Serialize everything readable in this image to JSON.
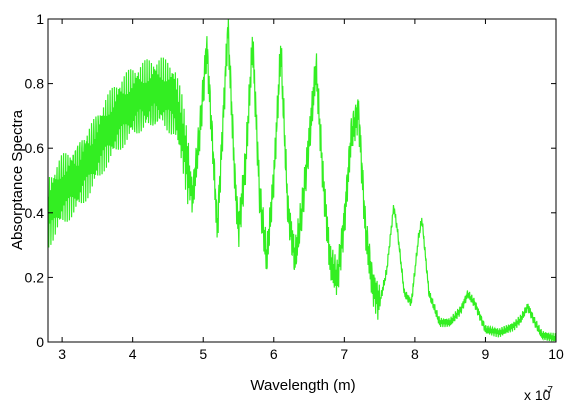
{
  "chart_data": {
    "type": "line",
    "title": "",
    "xlabel": "Wavelength (m)",
    "ylabel": "Absorptance Spectra",
    "x_scale_note": "x 10",
    "x_scale_exponent": "-7",
    "xlim": [
      2.8,
      10
    ],
    "ylim": [
      0,
      1
    ],
    "x_ticks": [
      3,
      4,
      5,
      6,
      7,
      8,
      9,
      10
    ],
    "y_ticks": [
      0,
      0.2,
      0.4,
      0.6,
      0.8,
      1
    ],
    "x_tick_labels": [
      "3",
      "4",
      "5",
      "6",
      "7",
      "8",
      "9",
      "10"
    ],
    "y_tick_labels": [
      "0",
      "0.2",
      "0.4",
      "0.6",
      "0.8",
      "1"
    ],
    "grid": false,
    "line_color": "#33ee22",
    "oscillation_note": "fine high-frequency ripple of roughly +/-0.1 on top of envelope",
    "series": [
      {
        "name": "",
        "x": [
          2.8,
          3.0,
          3.2,
          3.4,
          3.6,
          3.8,
          4.0,
          4.2,
          4.4,
          4.6,
          4.7,
          4.85,
          4.95,
          5.05,
          5.15,
          5.2,
          5.35,
          5.45,
          5.5,
          5.6,
          5.7,
          5.8,
          5.9,
          6.0,
          6.1,
          6.2,
          6.3,
          6.4,
          6.5,
          6.6,
          6.7,
          6.8,
          6.9,
          7.0,
          7.1,
          7.2,
          7.3,
          7.4,
          7.5,
          7.6,
          7.7,
          7.75,
          7.85,
          7.95,
          8.05,
          8.1,
          8.2,
          8.35,
          8.5,
          8.65,
          8.75,
          8.85,
          9.0,
          9.2,
          9.4,
          9.5,
          9.6,
          9.7,
          9.8,
          10.0
        ],
        "y": [
          0.4,
          0.48,
          0.52,
          0.58,
          0.65,
          0.7,
          0.73,
          0.75,
          0.76,
          0.74,
          0.65,
          0.45,
          0.65,
          0.92,
          0.55,
          0.35,
          0.98,
          0.5,
          0.35,
          0.55,
          0.93,
          0.45,
          0.25,
          0.5,
          0.9,
          0.4,
          0.25,
          0.4,
          0.62,
          0.85,
          0.5,
          0.25,
          0.2,
          0.38,
          0.65,
          0.72,
          0.35,
          0.18,
          0.12,
          0.22,
          0.42,
          0.35,
          0.15,
          0.12,
          0.32,
          0.38,
          0.15,
          0.06,
          0.06,
          0.1,
          0.15,
          0.12,
          0.04,
          0.03,
          0.05,
          0.07,
          0.11,
          0.06,
          0.02,
          0.01
        ]
      }
    ]
  }
}
